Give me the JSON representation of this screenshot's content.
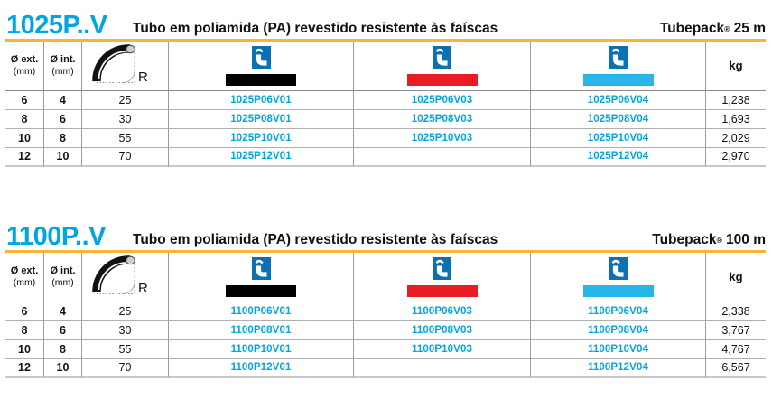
{
  "page": {
    "background": "#ffffff"
  },
  "colors": {
    "title_cyan": "#00A5E3",
    "code_cyan": "#00A5E3",
    "rule_orange": "#F8B434",
    "icon_blue": "#0C70B4",
    "swatch_v01": "#000000",
    "swatch_v03": "#E81C24",
    "swatch_v04": "#29B5E9",
    "grid_line": "#9B9B9B"
  },
  "tables": [
    {
      "title": "1025P..V",
      "subtitle": "Tubo em poliamida (PA) revestido resistente às faíscas",
      "tubepack_brand": "Tubepack",
      "tubepack_reg": "®",
      "tubepack_length": "25 m",
      "col_headers": {
        "ext_label": "Ø ext.",
        "ext_unit": "(mm)",
        "int_label": "Ø int.",
        "int_unit": "(mm)",
        "radius_label": "R",
        "weight_label": "kg"
      },
      "rows": [
        {
          "d_ext": "6",
          "d_int": "4",
          "r": "25",
          "v01": "1025P06V01",
          "v03": "1025P06V03",
          "v04": "1025P06V04",
          "kg": "1,238"
        },
        {
          "d_ext": "8",
          "d_int": "6",
          "r": "30",
          "v01": "1025P08V01",
          "v03": "1025P08V03",
          "v04": "1025P08V04",
          "kg": "1,693"
        },
        {
          "d_ext": "10",
          "d_int": "8",
          "r": "55",
          "v01": "1025P10V01",
          "v03": "1025P10V03",
          "v04": "1025P10V04",
          "kg": "2,029"
        },
        {
          "d_ext": "12",
          "d_int": "10",
          "r": "70",
          "v01": "1025P12V01",
          "v03": "",
          "v04": "1025P12V04",
          "kg": "2,970"
        }
      ]
    },
    {
      "title": "1100P..V",
      "subtitle": "Tubo em poliamida (PA) revestido resistente às faíscas",
      "tubepack_brand": "Tubepack",
      "tubepack_reg": "®",
      "tubepack_length": "100 m",
      "col_headers": {
        "ext_label": "Ø ext.",
        "ext_unit": "(mm)",
        "int_label": "Ø int.",
        "int_unit": "(mm)",
        "radius_label": "R",
        "weight_label": "kg"
      },
      "rows": [
        {
          "d_ext": "6",
          "d_int": "4",
          "r": "25",
          "v01": "1100P06V01",
          "v03": "1100P06V03",
          "v04": "1100P06V04",
          "kg": "2,338"
        },
        {
          "d_ext": "8",
          "d_int": "6",
          "r": "30",
          "v01": "1100P08V01",
          "v03": "1100P08V03",
          "v04": "1100P08V04",
          "kg": "3,767"
        },
        {
          "d_ext": "10",
          "d_int": "8",
          "r": "55",
          "v01": "1100P10V01",
          "v03": "1100P10V03",
          "v04": "1100P10V04",
          "kg": "4,767"
        },
        {
          "d_ext": "12",
          "d_int": "10",
          "r": "70",
          "v01": "1100P12V01",
          "v03": "",
          "v04": "1100P12V04",
          "kg": "6,567"
        }
      ]
    }
  ]
}
